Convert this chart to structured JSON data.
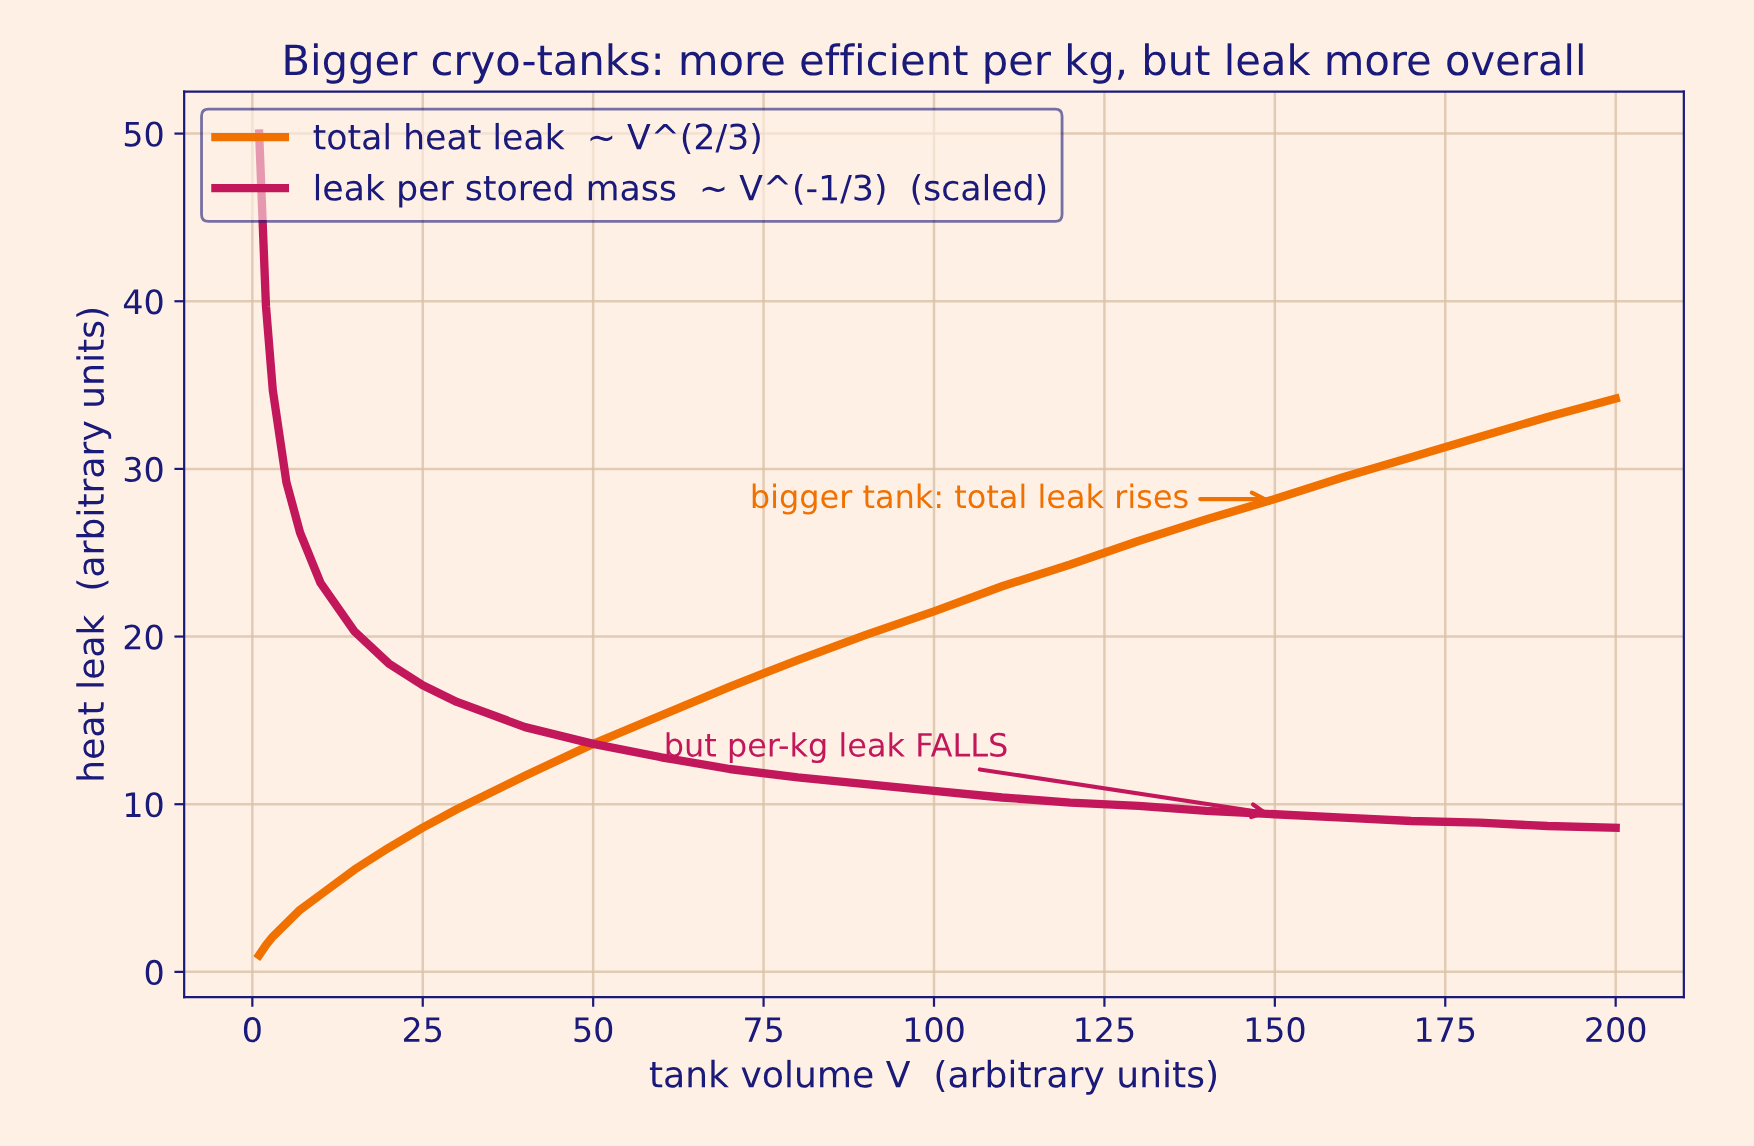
{
  "chart_data": {
    "type": "line",
    "title": "Bigger cryo-tanks: more efficient per kg, but leak more overall",
    "xlabel": "tank volume V  (arbitrary units)",
    "ylabel": "heat leak  (arbitrary units)",
    "x": [
      1,
      2,
      3,
      5,
      7,
      10,
      15,
      20,
      25,
      30,
      40,
      50,
      60,
      70,
      80,
      90,
      100,
      110,
      120,
      130,
      140,
      150,
      160,
      170,
      180,
      190,
      200
    ],
    "series": [
      {
        "name": "total heat leak  ~ V^(2/3)",
        "color": "#f07000",
        "values": [
          1.0,
          1.6,
          2.1,
          2.9,
          3.7,
          4.6,
          6.1,
          7.4,
          8.6,
          9.7,
          11.7,
          13.6,
          15.3,
          17.0,
          18.6,
          20.1,
          21.5,
          23.0,
          24.3,
          25.7,
          27.0,
          28.2,
          29.5,
          30.7,
          31.9,
          33.1,
          34.2
        ]
      },
      {
        "name": "leak per stored mass  ~ V^(-1/3)  (scaled)",
        "color": "#c2185b",
        "values": [
          50.0,
          39.7,
          34.7,
          29.2,
          26.2,
          23.2,
          20.3,
          18.4,
          17.1,
          16.1,
          14.6,
          13.6,
          12.8,
          12.1,
          11.6,
          11.2,
          10.8,
          10.4,
          10.1,
          9.9,
          9.6,
          9.4,
          9.2,
          9.0,
          8.9,
          8.7,
          8.6
        ]
      }
    ],
    "annotations": [
      {
        "text": "bigger tank: total leak rises",
        "x": 150,
        "y": 28.2
      },
      {
        "text": "but per-kg leak FALLS",
        "x": 150,
        "y": 9.4
      }
    ],
    "xlim": [
      -10,
      210
    ],
    "xticks": [
      0,
      25,
      50,
      75,
      100,
      125,
      150,
      175,
      200
    ],
    "ylim": [
      -1.5,
      52.5
    ],
    "yticks": [
      0,
      10,
      20,
      30,
      40,
      50
    ],
    "grid": true,
    "legend": "top left",
    "marker": "none",
    "line_style": "solid"
  }
}
